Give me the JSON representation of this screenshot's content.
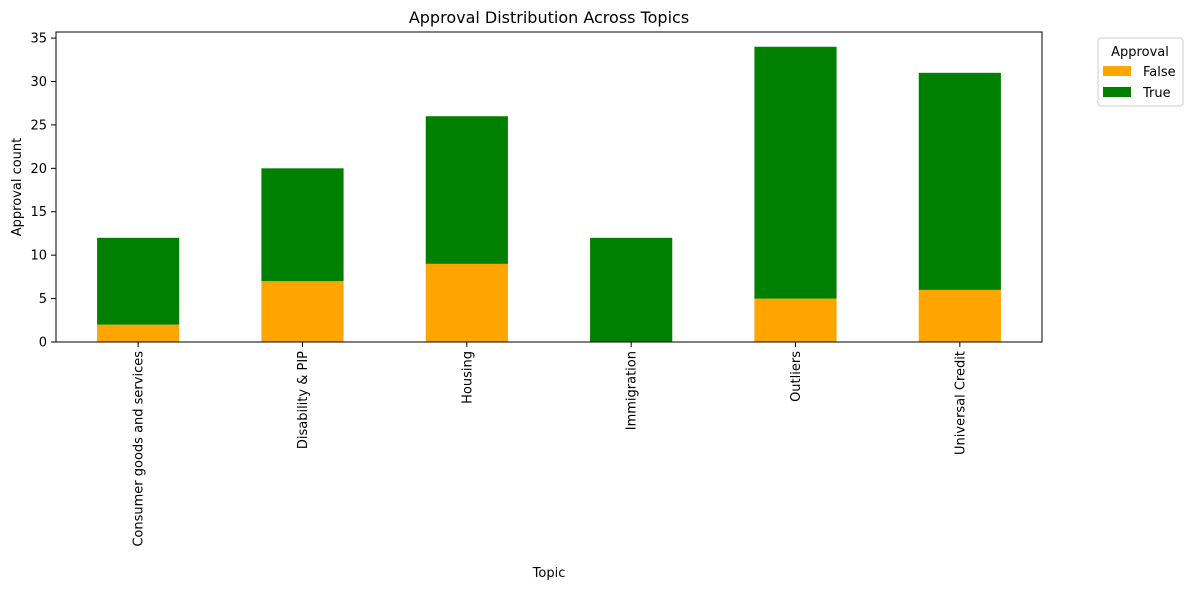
{
  "chart_data": {
    "type": "bar",
    "stacked": true,
    "title": "Approval Distribution Across Topics",
    "xlabel": "Topic",
    "ylabel": "Approval count",
    "categories": [
      "Consumer goods and services",
      "Disability & PIP",
      "Housing",
      "Immigration",
      "Outliers",
      "Universal Credit"
    ],
    "series": [
      {
        "name": "False",
        "values": [
          2,
          7,
          9,
          0,
          5,
          6
        ],
        "color": "#ffa500"
      },
      {
        "name": "True",
        "values": [
          10,
          13,
          17,
          12,
          29,
          25
        ],
        "color": "#008000"
      }
    ],
    "ylim": [
      0,
      35.7
    ],
    "yticks": [
      0,
      5,
      10,
      15,
      20,
      25,
      30,
      35
    ],
    "grid": false,
    "legend": {
      "title": "Approval",
      "placement": "outside-top-right"
    }
  }
}
